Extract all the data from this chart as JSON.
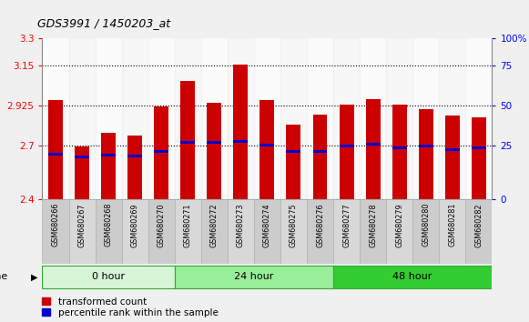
{
  "title": "GDS3991 / 1450203_at",
  "samples": [
    "GSM680266",
    "GSM680267",
    "GSM680268",
    "GSM680269",
    "GSM680270",
    "GSM680271",
    "GSM680272",
    "GSM680273",
    "GSM680274",
    "GSM680275",
    "GSM680276",
    "GSM680277",
    "GSM680278",
    "GSM680279",
    "GSM680280",
    "GSM680281",
    "GSM680282"
  ],
  "bar_heights": [
    2.955,
    2.695,
    2.775,
    2.76,
    2.92,
    3.065,
    2.94,
    3.155,
    2.955,
    2.82,
    2.875,
    2.93,
    2.96,
    2.93,
    2.905,
    2.87,
    2.86
  ],
  "blue_positions": [
    2.655,
    2.64,
    2.65,
    2.645,
    2.67,
    2.72,
    2.72,
    2.725,
    2.705,
    2.67,
    2.67,
    2.7,
    2.71,
    2.69,
    2.7,
    2.68,
    2.69
  ],
  "groups": [
    {
      "label": "0 hour",
      "start": 0,
      "end": 5,
      "color": "#d6f5d6"
    },
    {
      "label": "24 hour",
      "start": 5,
      "end": 11,
      "color": "#99ee99"
    },
    {
      "label": "48 hour",
      "start": 11,
      "end": 17,
      "color": "#33cc33"
    }
  ],
  "ylim": [
    2.4,
    3.3
  ],
  "yticks_left": [
    2.4,
    2.7,
    2.925,
    3.15,
    3.3
  ],
  "yticks_right_vals": [
    0,
    25,
    50,
    75,
    100
  ],
  "yticks_right_pos": [
    2.4,
    2.7,
    2.925,
    3.15,
    3.3
  ],
  "hlines": [
    2.7,
    2.925,
    3.15
  ],
  "bar_color": "#cc0000",
  "blue_color": "#0000cc",
  "bar_width": 0.55,
  "group_border_color": "#33aa33",
  "bg_color": "#ffffff",
  "fig_bg": "#f0f0f0"
}
